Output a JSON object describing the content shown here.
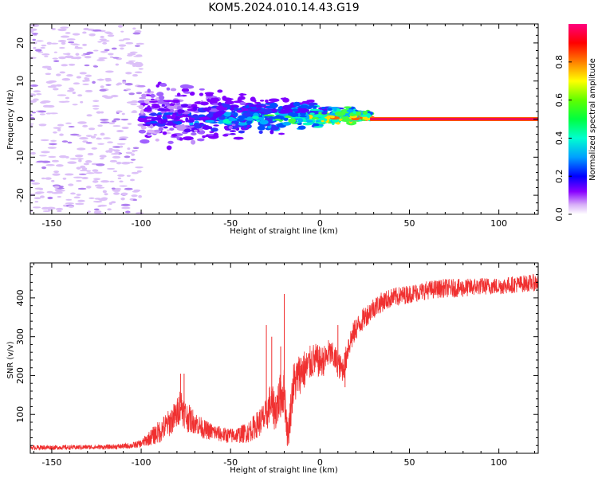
{
  "figure": {
    "title": "KOM5.2024.010.14.43.G19"
  },
  "colors": {
    "snr_line": "#f03030",
    "background": "#ffffff",
    "axes": "#000000",
    "strong_signal": "#f01050"
  },
  "chart_data": [
    {
      "type": "heatmap",
      "name": "spectrogram",
      "xlabel": "Height of straight line (km)",
      "ylabel": "Frequency (Hz)",
      "xlim": [
        -162,
        122
      ],
      "ylim": [
        -25,
        25
      ],
      "xticks": [
        -150,
        -100,
        -50,
        0,
        50,
        100
      ],
      "xtick_labels": [
        "-150",
        "-100",
        "-50",
        "0",
        "50",
        "100"
      ],
      "yticks": [
        -20,
        -10,
        0,
        10,
        20
      ],
      "ytick_labels": [
        "-20",
        "-10",
        "0",
        "10",
        "20"
      ],
      "colorbar": {
        "label": "Normalized spectral amplitude",
        "range": [
          0,
          1
        ],
        "ticks": [
          0.0,
          0.2,
          0.4,
          0.6,
          0.8
        ],
        "tick_labels": [
          "0.0",
          "0.2",
          "0.4",
          "0.6",
          "0.8"
        ],
        "colormap": "rainbow"
      },
      "features": {
        "carrier_line": {
          "x_start": 28,
          "x_end": 122,
          "frequency_hz": 0,
          "amplitude": 1.0
        },
        "noise_region_x": [
          -162,
          -100
        ],
        "noise_frequency_span_hz": [
          -25,
          25
        ],
        "scintillation_region_x": [
          -100,
          28
        ],
        "scintillation_frequency_span_hz": [
          -7,
          12
        ]
      }
    },
    {
      "type": "line",
      "name": "snr",
      "xlabel": "Height of straight line (km)",
      "ylabel": "SNR (v/v)",
      "xlim": [
        -162,
        122
      ],
      "ylim": [
        0,
        490
      ],
      "xticks": [
        -150,
        -100,
        -50,
        0,
        50,
        100
      ],
      "xtick_labels": [
        "-150",
        "-100",
        "-50",
        "0",
        "50",
        "100"
      ],
      "yticks": [
        100,
        200,
        300,
        400
      ],
      "ytick_labels": [
        "100",
        "200",
        "300",
        "400"
      ],
      "series": [
        {
          "x": [
            -162,
            -150,
            -140,
            -130,
            -120,
            -110,
            -105,
            -100,
            -95,
            -90,
            -85,
            -80,
            -78,
            -75,
            -70,
            -65,
            -60,
            -55,
            -50,
            -45,
            -40,
            -35,
            -30,
            -28,
            -25,
            -22,
            -20,
            -18,
            -15,
            -12,
            -10,
            -8,
            -5,
            -3,
            0,
            3,
            5,
            8,
            10,
            12,
            14,
            16,
            20,
            25,
            30,
            35,
            40,
            50,
            60,
            70,
            80,
            90,
            100,
            110,
            122
          ],
          "y": [
            15,
            15,
            15,
            16,
            16,
            18,
            20,
            25,
            40,
            55,
            75,
            100,
            130,
            95,
            80,
            62,
            55,
            48,
            45,
            48,
            55,
            75,
            95,
            130,
            110,
            150,
            160,
            40,
            175,
            200,
            215,
            215,
            235,
            240,
            235,
            240,
            260,
            245,
            230,
            215,
            230,
            280,
            320,
            350,
            375,
            390,
            400,
            410,
            420,
            425,
            425,
            430,
            430,
            435,
            440
          ],
          "noise_amplitude": [
            6,
            6,
            6,
            6,
            6,
            7,
            8,
            10,
            20,
            30,
            35,
            40,
            45,
            40,
            30,
            25,
            22,
            20,
            20,
            22,
            28,
            35,
            45,
            50,
            55,
            60,
            60,
            40,
            60,
            55,
            55,
            50,
            45,
            45,
            40,
            40,
            35,
            35,
            35,
            35,
            35,
            35,
            30,
            28,
            28,
            26,
            25,
            24,
            24,
            24,
            24,
            22,
            22,
            22,
            22
          ],
          "spikes": [
            {
              "x": -78,
              "y": 205
            },
            {
              "x": -76,
              "y": 205
            },
            {
              "x": -30,
              "y": 330
            },
            {
              "x": -27,
              "y": 300
            },
            {
              "x": -22,
              "y": 275
            },
            {
              "x": -20,
              "y": 410
            },
            {
              "x": -12,
              "y": 235
            },
            {
              "x": 10,
              "y": 330
            },
            {
              "x": 14,
              "y": 170
            }
          ]
        }
      ]
    }
  ]
}
